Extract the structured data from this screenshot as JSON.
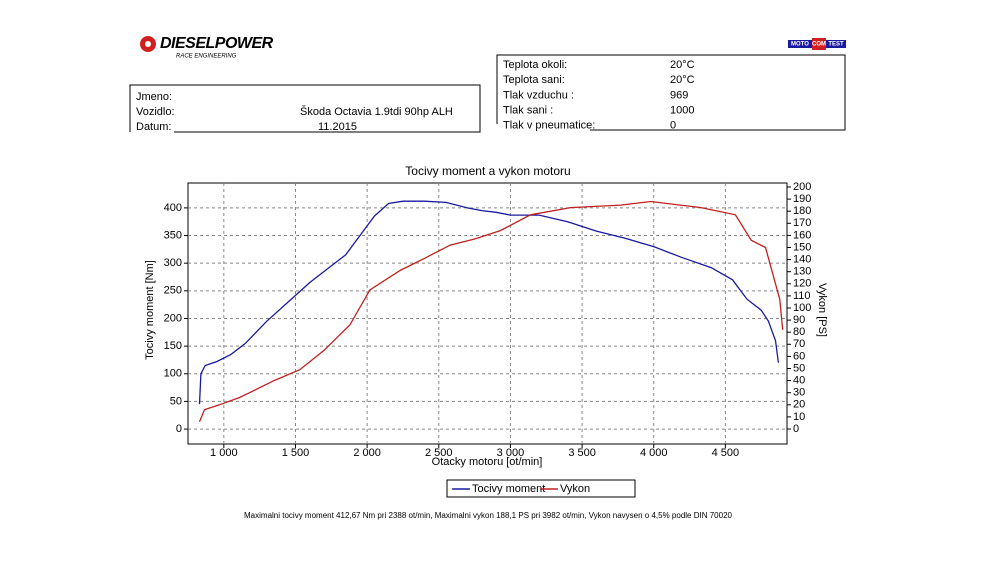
{
  "header": {
    "logo": "DIESELPOWER",
    "logo_subtitle": "RACE ENGINEERING",
    "badge": [
      "MOTO",
      "COM",
      "TEST"
    ]
  },
  "vehicle_box": [
    [
      "Jmeno:",
      ""
    ],
    [
      "Vozidlo:",
      "Škoda Octavia 1.9tdi 90hp ALH"
    ],
    [
      "Datum:",
      "11.2015"
    ]
  ],
  "conditions_box": [
    [
      "Teplota okoli:",
      "20°C"
    ],
    [
      "Teplota sani:",
      "20°C"
    ],
    [
      "Tlak vzduchu :",
      "969"
    ],
    [
      "Tlak sani :",
      "1000"
    ],
    [
      "Tlak v pneumatice:",
      "0"
    ]
  ],
  "chart_data": {
    "type": "line",
    "title": "Tocivy moment a vykon motoru",
    "x_label": "Otacky motoru [ot/min]",
    "y_label": "Tocivy moment [Nm]",
    "y2_label": "Vykon [PS]",
    "xlim": [
      750,
      4930
    ],
    "ylim": [
      -27,
      445
    ],
    "y2lim": [
      -12.4,
      203.3
    ],
    "xticks": [
      {
        "value": 1000,
        "label": "1 000"
      },
      {
        "value": 1500,
        "label": "1 500"
      },
      {
        "value": 2000,
        "label": "2 000"
      },
      {
        "value": 2500,
        "label": "2 500"
      },
      {
        "value": 3000,
        "label": "3 000"
      },
      {
        "value": 3500,
        "label": "3 500"
      },
      {
        "value": 4000,
        "label": "4 000"
      },
      {
        "value": 4500,
        "label": "4 500"
      }
    ],
    "yticks": [
      0,
      50,
      100,
      150,
      200,
      250,
      300,
      350,
      400
    ],
    "y2ticks": [
      0,
      10,
      20,
      30,
      40,
      50,
      60,
      70,
      80,
      90,
      100,
      110,
      120,
      130,
      140,
      150,
      160,
      170,
      180,
      190,
      200
    ],
    "grid": true,
    "series": [
      {
        "name": "Tocivy moment",
        "color": "#1a1aa0",
        "x": [
          830,
          840,
          870,
          950,
          1050,
          1150,
          1300,
          1450,
          1600,
          1750,
          1850,
          1950,
          2050,
          2150,
          2250,
          2400,
          2550,
          2700,
          2800,
          2900,
          3000,
          3200,
          3400,
          3600,
          3800,
          4000,
          4200,
          4400,
          4550,
          4650,
          4750,
          4800,
          4850,
          4870
        ],
        "values": [
          45,
          100,
          115,
          122,
          135,
          155,
          195,
          230,
          265,
          295,
          315,
          350,
          385,
          408,
          412,
          412,
          410,
          400,
          395,
          392,
          387,
          387,
          375,
          358,
          345,
          330,
          310,
          292,
          270,
          235,
          215,
          195,
          160,
          120
        ]
      },
      {
        "name": "Vykon",
        "color": "#c02020",
        "axis": "y2",
        "x": [
          830,
          865,
          970,
          1110,
          1180,
          1350,
          1530,
          1700,
          1880,
          2020,
          2230,
          2400,
          2580,
          2750,
          2930,
          3140,
          3420,
          3770,
          3980,
          4330,
          4570,
          4680,
          4780,
          4880,
          4900
        ],
        "values": [
          6,
          16,
          20,
          26,
          30,
          40,
          49,
          65,
          86,
          115,
          131,
          141,
          152,
          157,
          164,
          177,
          183,
          185,
          188,
          183,
          177,
          156,
          150,
          107,
          82
        ]
      }
    ],
    "note": "Maximalni tocivy moment 412,67 Nm pri 2388 ot/min,  Maximalni vykon 188,1 PS pri 3982 ot/min,  Vykon navysen o 4,5% podle DIN 70020"
  }
}
